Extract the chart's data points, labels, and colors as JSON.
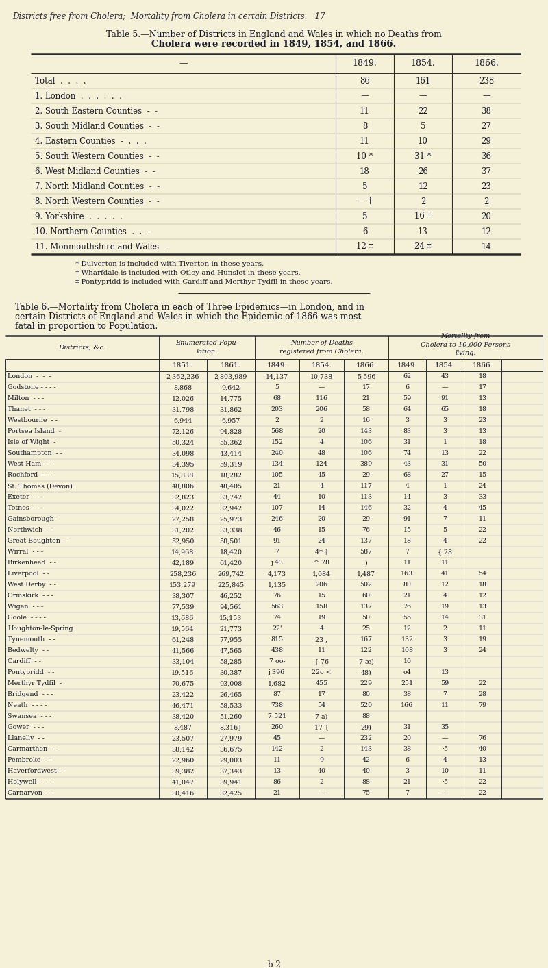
{
  "bg_color": "#f5f0d8",
  "page_header": "Districts free from Cholera;  Mortality from Cholera in certain Districts.   17",
  "table5_title_line1": "Table 5.—Number of Districts in England and Wales in which no Deaths from",
  "table5_title_line2": "Cholera were recorded in 1849, 1854, and 1866.",
  "table5_cols": [
    "1849.",
    "1854.",
    "1866."
  ],
  "table5_rows": [
    [
      "Total  .  .  .  .",
      "86",
      "161",
      "238"
    ],
    [
      "1. London  .  .  .  .  .  .",
      "—",
      "—",
      "—"
    ],
    [
      "2. South Eastern Counties  -  -",
      "11",
      "22",
      "38"
    ],
    [
      "3. South Midland Counties  -  -",
      "8",
      "5",
      "27"
    ],
    [
      "4. Eastern Counties  -  .  .  .",
      "11",
      "10",
      "29"
    ],
    [
      "5. South Western Counties  -  -",
      "10 *",
      "31 *",
      "36"
    ],
    [
      "6. West Midland Counties  -  -",
      "18",
      "26",
      "37"
    ],
    [
      "7. North Midland Counties  -  -",
      "5",
      "12",
      "23"
    ],
    [
      "8. North Western Counties  -  -",
      "— †",
      "2",
      "2"
    ],
    [
      "9. Yorkshire  .  .  .  .  .",
      "5",
      "16 †",
      "20"
    ],
    [
      "10. Northern Counties  .  .  -",
      "6",
      "13",
      "12"
    ],
    [
      "11. Monmouthshire and Wales  -",
      "12 ‡",
      "24 ‡",
      "14"
    ]
  ],
  "table5_footnotes": [
    "* Dulverton is included with Tiverton in these years.",
    "† Wharfdale is included with Otley and Hunslet in these years.",
    "‡ Pontypridd is included with Cardiff and Merthyr Tydfil in these years."
  ],
  "table6_title_line1": "Table 6.—Mortality from Cholera in each of Three Epidemics—in London, and in",
  "table6_title_line2": "certain Districts of England and Wales in which the Epidemic of 1866 was most",
  "table6_title_line3": "fatal in proportion to Population.",
  "table6_subheaders": [
    "",
    "1851.",
    "1861.",
    "1849.",
    "1854.",
    "1866.",
    "1849.",
    "1854.",
    "1866."
  ],
  "table6_rows": [
    [
      "London  -  -  -",
      "2,362,236",
      "2,803,989",
      "14,137",
      "10,738",
      "5,596",
      "62",
      "43",
      "18"
    ],
    [
      "Godstone - - - -",
      "8,868",
      "9,642",
      "5",
      "—",
      "17",
      "6",
      "—",
      "17"
    ],
    [
      "Milton  - - -",
      "12,026",
      "14,775",
      "68",
      "116",
      "21",
      "59",
      "91",
      "13"
    ],
    [
      "Thanet  - - -",
      "31,798",
      "31,862",
      "203",
      "206",
      "58",
      "64",
      "65",
      "18"
    ],
    [
      "Westbourne  - -",
      "6,944",
      "6,957",
      "2",
      "2",
      "16",
      "3",
      "3",
      "23"
    ],
    [
      "Portsea Island  -",
      "72,126",
      "94,828",
      "568",
      "20",
      "143",
      "83",
      "3",
      "13"
    ],
    [
      "Isle of Wight  -",
      "50,324",
      "55,362",
      "152",
      "4",
      "106",
      "31",
      "1",
      "18"
    ],
    [
      "Southampton  - -",
      "34,098",
      "43,414",
      "240",
      "48",
      "106",
      "74",
      "13",
      "22"
    ],
    [
      "West Ham  - -",
      "34,395",
      "59,319",
      "134",
      "124",
      "389",
      "43",
      "31",
      "50"
    ],
    [
      "Rochford  - - -",
      "15,838",
      "18,282",
      "105",
      "45",
      "29",
      "68",
      "27",
      "15"
    ],
    [
      "St. Thomas (Devon)",
      "48,806",
      "48,405",
      "21",
      "4",
      "117",
      "4",
      "1",
      "24"
    ],
    [
      "Exeter  - - -",
      "32,823",
      "33,742",
      "44",
      "10",
      "113",
      "14",
      "3",
      "33"
    ],
    [
      "Totnes  - - -",
      "34,022",
      "32,942",
      "107",
      "14",
      "146",
      "32",
      "4",
      "45"
    ],
    [
      "Gainsborough  -",
      "27,258",
      "25,973",
      "246",
      "20",
      "29",
      "91",
      "7",
      "11"
    ],
    [
      "Northwich  - -",
      "31,202",
      "33,338",
      "46",
      "15",
      "76",
      "15",
      "5",
      "22"
    ],
    [
      "Great Boughton  -",
      "52,950",
      "58,501",
      "91",
      "24",
      "137",
      "18",
      "4",
      "22"
    ],
    [
      "Wirral  - - -",
      "14,968",
      "18,420",
      "7",
      "4* †",
      "587",
      "7",
      "{ 28",
      ""
    ],
    [
      "Birkenhead  - -",
      "42,189",
      "61,420",
      "j 43",
      "^ 78",
      ")",
      "11",
      "11",
      ""
    ],
    [
      "Liverpool  - -",
      "258,236",
      "269,742",
      "4,173",
      "1,084",
      "1,487",
      "163",
      "41",
      "54"
    ],
    [
      "West Derby  - -",
      "153,279",
      "225,845",
      "1,135",
      "206",
      "502",
      "80",
      "12",
      "18"
    ],
    [
      "Ormskirk  - - -",
      "38,307",
      "46,252",
      "76",
      "15",
      "60",
      "21",
      "4",
      "12"
    ],
    [
      "Wigan  - - -",
      "77,539",
      "94,561",
      "563",
      "158",
      "137",
      "76",
      "19",
      "13"
    ],
    [
      "Goole  - - - -",
      "13,686",
      "15,153",
      "74",
      "19",
      "50",
      "55",
      "14",
      "31"
    ],
    [
      "Houghton-le-Spring",
      "19,564",
      "21,773",
      "22'",
      "4",
      "25",
      "12",
      "2",
      "11"
    ],
    [
      "Tynemouth  - -",
      "61,248",
      "77,955",
      "815",
      "23 ,",
      "167",
      "132",
      "3",
      "19"
    ],
    [
      "Bedwelty  - -",
      "41,566",
      "47,565",
      "438",
      "11",
      "122",
      "108",
      "3",
      "24"
    ],
    [
      "Cardiff  - -",
      "33,104",
      "58,285",
      "7 oo-",
      "{ 76",
      "7 æ)",
      "10",
      "",
      ""
    ],
    [
      "Pontypridd  - -",
      "19,516",
      "30,387",
      "j 396",
      "22o <",
      "48)",
      "o4",
      "13",
      ""
    ],
    [
      "Merthyr Tydfil  -",
      "70,675",
      "93,008",
      "1,682",
      "455",
      "229",
      "251",
      "59",
      "22"
    ],
    [
      "Bridgend  - - -",
      "23,422",
      "26,465",
      "87",
      "17",
      "80",
      "38",
      "7",
      "28"
    ],
    [
      "Neath  - - - -",
      "46,471",
      "58,533",
      "738",
      "54",
      "520",
      "166",
      "11",
      "79"
    ],
    [
      "Swansea  - - -",
      "38,420",
      "51,260",
      "7 521",
      "7 a)",
      "88",
      "",
      "",
      ""
    ],
    [
      "Gower  - - -",
      "8,487",
      "8,316}",
      "260",
      "17 {",
      "29)",
      "31",
      "35",
      ""
    ],
    [
      "Llanelly  - -",
      "23,507",
      "27,979",
      "45",
      "—",
      "232",
      "20",
      "—",
      "76"
    ],
    [
      "Carmarthen  - -",
      "38,142",
      "36,675",
      "142",
      "2",
      "143",
      "38",
      "·5",
      "40"
    ],
    [
      "Pembroke  - -",
      "22,960",
      "29,003",
      "11",
      "9",
      "42",
      "6",
      "4",
      "13"
    ],
    [
      "Haverfordwest  -",
      "39,382",
      "37,343",
      "13",
      "40",
      "40",
      "3",
      "10",
      "11"
    ],
    [
      "Holywell  - - -",
      "41,047",
      "39,941",
      "86",
      "2",
      "88",
      "21",
      "·5",
      "22"
    ],
    [
      "Carnarvon  - -",
      "30,416",
      "32,425",
      "21",
      "—",
      "75",
      "7",
      "—",
      "22"
    ]
  ]
}
